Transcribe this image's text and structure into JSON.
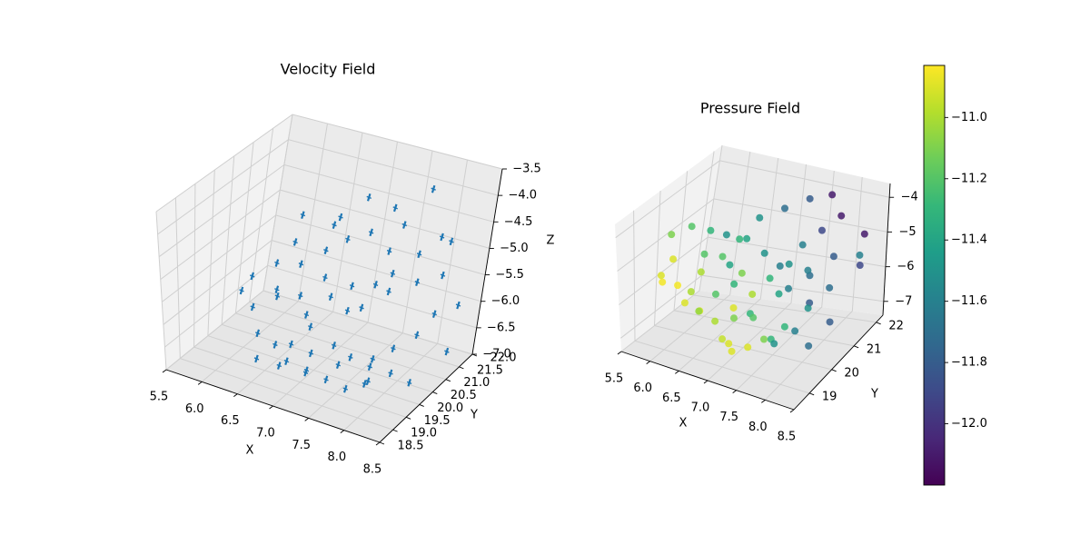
{
  "chart_data": [
    {
      "type": "scatter",
      "kind": "quiver-3d",
      "title": "Velocity Field",
      "xlabel": "X",
      "ylabel": "Y",
      "zlabel": "Z",
      "xlim": [
        5.5,
        8.5
      ],
      "ylim": [
        18.5,
        22.0
      ],
      "zlim": [
        -7.0,
        -3.5
      ],
      "xticks": [
        "5.5",
        "6.0",
        "6.5",
        "7.0",
        "7.5",
        "8.0",
        "8.5"
      ],
      "yticks": [
        "18.5",
        "19.0",
        "19.5",
        "20.0",
        "20.5",
        "21.0",
        "21.5",
        "22.0"
      ],
      "zticks": [
        "−7.0",
        "−6.5",
        "−6.0",
        "−5.5",
        "−5.0",
        "−4.5",
        "−4.0",
        "−3.5"
      ],
      "color": "#1f77b4",
      "grid": true,
      "points": [
        [
          6.2,
          19.4,
          -5.4
        ],
        [
          6.3,
          19.5,
          -5.1
        ],
        [
          6.4,
          19.3,
          -5.6
        ],
        [
          6.5,
          19.8,
          -4.9
        ],
        [
          6.6,
          19.6,
          -5.3
        ],
        [
          6.7,
          20.1,
          -5.0
        ],
        [
          6.8,
          19.9,
          -5.5
        ],
        [
          6.9,
          20.4,
          -4.8
        ],
        [
          7.0,
          20.2,
          -5.2
        ],
        [
          7.1,
          20.6,
          -4.6
        ],
        [
          6.5,
          20.5,
          -4.3
        ],
        [
          6.8,
          21.0,
          -4.5
        ],
        [
          7.2,
          21.1,
          -4.7
        ],
        [
          7.4,
          21.3,
          -5.1
        ],
        [
          7.6,
          21.0,
          -5.3
        ],
        [
          7.8,
          21.4,
          -5.6
        ],
        [
          7.5,
          20.7,
          -5.4
        ],
        [
          7.3,
          20.3,
          -5.8
        ],
        [
          7.0,
          19.8,
          -6.0
        ],
        [
          6.9,
          19.4,
          -6.2
        ],
        [
          7.1,
          19.6,
          -6.4
        ],
        [
          7.3,
          19.9,
          -6.3
        ],
        [
          7.5,
          20.0,
          -6.5
        ],
        [
          7.7,
          20.3,
          -6.6
        ],
        [
          7.9,
          20.5,
          -6.4
        ],
        [
          8.1,
          20.8,
          -6.2
        ],
        [
          8.2,
          21.1,
          -5.9
        ],
        [
          8.0,
          20.2,
          -6.7
        ],
        [
          7.8,
          19.9,
          -6.8
        ],
        [
          7.6,
          19.6,
          -6.9
        ],
        [
          7.4,
          19.4,
          -6.7
        ],
        [
          7.2,
          19.2,
          -6.5
        ],
        [
          7.0,
          19.0,
          -6.3
        ],
        [
          6.8,
          19.1,
          -6.1
        ],
        [
          6.6,
          19.0,
          -5.9
        ],
        [
          7.3,
          20.8,
          -6.0
        ],
        [
          7.5,
          21.2,
          -5.8
        ],
        [
          7.7,
          21.6,
          -5.2
        ],
        [
          7.9,
          21.8,
          -4.9
        ],
        [
          8.1,
          21.5,
          -5.4
        ],
        [
          8.3,
          21.7,
          -6.0
        ],
        [
          8.4,
          21.2,
          -6.6
        ],
        [
          8.2,
          20.4,
          -6.9
        ],
        [
          7.9,
          19.5,
          -6.6
        ],
        [
          7.1,
          20.9,
          -5.7
        ],
        [
          6.9,
          20.7,
          -5.9
        ],
        [
          6.7,
          20.4,
          -6.2
        ],
        [
          6.4,
          20.1,
          -5.8
        ],
        [
          6.3,
          20.8,
          -5.1
        ],
        [
          6.6,
          21.3,
          -4.9
        ],
        [
          6.9,
          21.6,
          -4.4
        ],
        [
          7.2,
          21.8,
          -4.6
        ],
        [
          7.6,
          22.0,
          -4.2
        ],
        [
          7.4,
          21.7,
          -4.8
        ],
        [
          8.0,
          21.9,
          -5.0
        ],
        [
          6.5,
          19.2,
          -6.6
        ],
        [
          6.7,
          19.5,
          -6.8
        ],
        [
          7.0,
          19.7,
          -6.9
        ],
        [
          7.3,
          20.1,
          -6.8
        ],
        [
          7.6,
          20.5,
          -6.9
        ]
      ]
    },
    {
      "type": "scatter",
      "kind": "scatter-3d",
      "title": "Pressure Field",
      "xlabel": "X",
      "ylabel": "Y",
      "zlabel": "",
      "xlim": [
        5.5,
        8.5
      ],
      "ylim": [
        18.3,
        22.3
      ],
      "zlim": [
        -7.4,
        -3.6
      ],
      "xticks": [
        "5.5",
        "6.0",
        "6.5",
        "7.0",
        "7.5",
        "8.0",
        "8.5"
      ],
      "yticks": [
        "19",
        "20",
        "21",
        "22"
      ],
      "zticks": [
        "−7",
        "−6",
        "−5",
        "−4"
      ],
      "colormap": "viridis",
      "colorbar": {
        "ticks": [
          "−12.0",
          "−11.8",
          "−11.6",
          "−11.4",
          "−11.2",
          "−11.0"
        ],
        "range": [
          -12.2,
          -10.83
        ]
      },
      "grid": true,
      "points": [
        [
          5.8,
          19.8,
          -4.6,
          -11.1
        ],
        [
          6.0,
          19.4,
          -5.0,
          -10.9
        ],
        [
          6.1,
          19.9,
          -4.3,
          -11.2
        ],
        [
          6.3,
          20.2,
          -4.5,
          -11.3
        ],
        [
          6.4,
          19.6,
          -5.3,
          -11.0
        ],
        [
          6.6,
          20.0,
          -5.0,
          -11.2
        ],
        [
          6.8,
          20.5,
          -4.7,
          -11.4
        ],
        [
          6.9,
          20.1,
          -5.4,
          -11.1
        ],
        [
          7.0,
          19.5,
          -6.0,
          -10.9
        ],
        [
          7.2,
          19.8,
          -5.7,
          -11.0
        ],
        [
          7.3,
          20.3,
          -5.5,
          -11.3
        ],
        [
          7.5,
          20.6,
          -5.2,
          -11.5
        ],
        [
          7.6,
          20.9,
          -4.8,
          -11.6
        ],
        [
          7.8,
          21.2,
          -4.5,
          -11.9
        ],
        [
          8.0,
          21.5,
          -4.2,
          -12.1
        ],
        [
          8.1,
          21.0,
          -5.0,
          -11.8
        ],
        [
          8.2,
          20.6,
          -5.6,
          -11.7
        ],
        [
          8.0,
          20.2,
          -6.0,
          -11.5
        ],
        [
          7.8,
          19.7,
          -6.3,
          -11.3
        ],
        [
          7.6,
          19.3,
          -6.5,
          -11.1
        ],
        [
          7.4,
          19.1,
          -6.7,
          -10.9
        ],
        [
          7.2,
          18.9,
          -6.8,
          -10.9
        ],
        [
          7.0,
          19.0,
          -6.6,
          -10.95
        ],
        [
          6.8,
          19.2,
          -6.3,
          -11.0
        ],
        [
          6.6,
          19.0,
          -6.0,
          -11.05
        ],
        [
          6.4,
          18.9,
          -5.8,
          -10.9
        ],
        [
          6.2,
          19.1,
          -5.5,
          -10.85
        ],
        [
          6.0,
          18.9,
          -5.2,
          -10.9
        ],
        [
          7.1,
          21.3,
          -4.2,
          -11.7
        ],
        [
          7.4,
          21.6,
          -4.0,
          -11.8
        ],
        [
          7.7,
          21.8,
          -3.9,
          -12.1
        ],
        [
          8.3,
          21.8,
          -4.8,
          -12.1
        ],
        [
          8.4,
          21.4,
          -5.4,
          -11.9
        ],
        [
          8.2,
          21.9,
          -5.5,
          -11.6
        ],
        [
          7.9,
          20.4,
          -5.1,
          -11.6
        ],
        [
          7.5,
          20.2,
          -5.8,
          -11.4
        ],
        [
          7.3,
          19.6,
          -6.2,
          -11.2
        ],
        [
          7.1,
          20.0,
          -6.4,
          -11.3
        ],
        [
          6.9,
          19.8,
          -6.5,
          -11.1
        ],
        [
          6.7,
          20.3,
          -5.9,
          -11.3
        ],
        [
          6.5,
          20.6,
          -5.6,
          -11.4
        ],
        [
          6.3,
          20.9,
          -5.0,
          -11.5
        ],
        [
          6.1,
          20.5,
          -5.4,
          -11.2
        ],
        [
          5.9,
          19.2,
          -5.6,
          -10.85
        ],
        [
          6.5,
          19.3,
          -6.2,
          -10.9
        ],
        [
          7.7,
          19.5,
          -6.7,
          -11.5
        ],
        [
          7.9,
          19.9,
          -6.5,
          -11.6
        ],
        [
          8.1,
          20.0,
          -6.9,
          -11.7
        ],
        [
          8.3,
          20.4,
          -6.4,
          -11.8
        ],
        [
          7.0,
          20.8,
          -5.2,
          -11.5
        ],
        [
          7.2,
          21.0,
          -5.6,
          -11.6
        ],
        [
          7.6,
          21.3,
          -5.9,
          -11.7
        ],
        [
          6.8,
          21.0,
          -4.4,
          -11.5
        ],
        [
          6.6,
          20.7,
          -4.9,
          -11.3
        ],
        [
          7.4,
          20.9,
          -6.1,
          -11.6
        ],
        [
          7.8,
          20.8,
          -6.3,
          -11.8
        ],
        [
          6.2,
          19.7,
          -6.0,
          -11.0
        ],
        [
          6.4,
          20.3,
          -6.3,
          -11.2
        ],
        [
          7.0,
          19.3,
          -6.9,
          -10.9
        ],
        [
          7.5,
          19.9,
          -6.9,
          -11.3
        ]
      ]
    }
  ]
}
